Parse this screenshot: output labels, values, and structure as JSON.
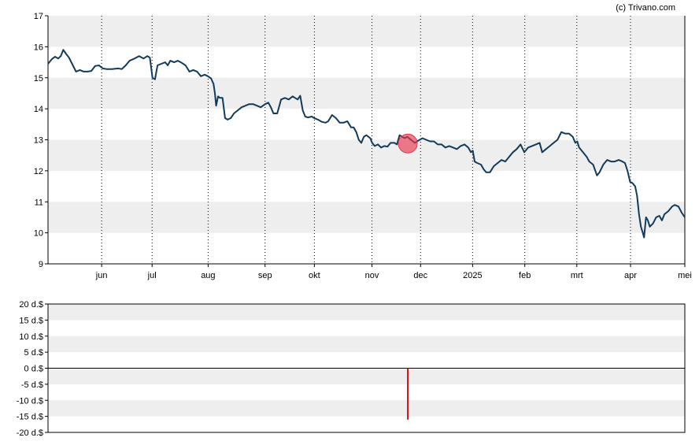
{
  "credit": "(c) Trivano.com",
  "chart_data": [
    {
      "type": "line",
      "panel": "price",
      "ylim": [
        9,
        17
      ],
      "y_ticks": [
        "9",
        "10",
        "11",
        "12",
        "13",
        "14",
        "15",
        "16",
        "17"
      ],
      "y_tick_values": [
        9,
        10,
        11,
        12,
        13,
        14,
        15,
        16,
        17
      ],
      "x_ticks": [
        "jun",
        "jul",
        "aug",
        "sep",
        "okt",
        "nov",
        "dec",
        "2025",
        "feb",
        "mrt",
        "apr",
        "mei"
      ],
      "x_tick_positions": [
        0.0842,
        0.1634,
        0.2514,
        0.3408,
        0.4183,
        0.5087,
        0.585,
        0.6667,
        0.7487,
        0.8304,
        0.9147,
        1.0
      ],
      "grid": "vertical dotted lines at month ticks, alternating horizontal bands",
      "series": [
        {
          "color": "#123b5b",
          "points": [
            [
              0.0,
              15.45
            ],
            [
              0.006,
              15.6
            ],
            [
              0.011,
              15.68
            ],
            [
              0.016,
              15.62
            ],
            [
              0.02,
              15.7
            ],
            [
              0.024,
              15.9
            ],
            [
              0.028,
              15.78
            ],
            [
              0.033,
              15.65
            ],
            [
              0.039,
              15.4
            ],
            [
              0.044,
              15.2
            ],
            [
              0.05,
              15.25
            ],
            [
              0.056,
              15.2
            ],
            [
              0.062,
              15.2
            ],
            [
              0.068,
              15.22
            ],
            [
              0.074,
              15.38
            ],
            [
              0.08,
              15.4
            ],
            [
              0.086,
              15.3
            ],
            [
              0.092,
              15.28
            ],
            [
              0.1,
              15.28
            ],
            [
              0.11,
              15.3
            ],
            [
              0.116,
              15.28
            ],
            [
              0.122,
              15.4
            ],
            [
              0.128,
              15.55
            ],
            [
              0.136,
              15.62
            ],
            [
              0.143,
              15.7
            ],
            [
              0.15,
              15.62
            ],
            [
              0.156,
              15.7
            ],
            [
              0.16,
              15.65
            ],
            [
              0.164,
              15.0
            ],
            [
              0.168,
              14.95
            ],
            [
              0.172,
              15.4
            ],
            [
              0.178,
              15.45
            ],
            [
              0.184,
              15.5
            ],
            [
              0.188,
              15.4
            ],
            [
              0.192,
              15.55
            ],
            [
              0.198,
              15.5
            ],
            [
              0.204,
              15.55
            ],
            [
              0.21,
              15.48
            ],
            [
              0.216,
              15.4
            ],
            [
              0.222,
              15.2
            ],
            [
              0.228,
              15.25
            ],
            [
              0.234,
              15.2
            ],
            [
              0.24,
              15.05
            ],
            [
              0.246,
              15.1
            ],
            [
              0.251,
              15.05
            ],
            [
              0.256,
              14.98
            ],
            [
              0.26,
              14.8
            ],
            [
              0.262,
              14.5
            ],
            [
              0.264,
              14.1
            ],
            [
              0.267,
              14.4
            ],
            [
              0.27,
              14.35
            ],
            [
              0.274,
              14.35
            ],
            [
              0.278,
              13.7
            ],
            [
              0.282,
              13.65
            ],
            [
              0.287,
              13.7
            ],
            [
              0.292,
              13.85
            ],
            [
              0.298,
              13.95
            ],
            [
              0.304,
              14.05
            ],
            [
              0.31,
              14.1
            ],
            [
              0.316,
              14.15
            ],
            [
              0.322,
              14.15
            ],
            [
              0.328,
              14.1
            ],
            [
              0.334,
              14.05
            ],
            [
              0.341,
              14.15
            ],
            [
              0.346,
              14.2
            ],
            [
              0.35,
              14.05
            ],
            [
              0.354,
              13.85
            ],
            [
              0.36,
              13.85
            ],
            [
              0.366,
              14.3
            ],
            [
              0.372,
              14.35
            ],
            [
              0.378,
              14.3
            ],
            [
              0.384,
              14.4
            ],
            [
              0.388,
              14.35
            ],
            [
              0.392,
              14.3
            ],
            [
              0.396,
              14.42
            ],
            [
              0.4,
              13.95
            ],
            [
              0.404,
              13.75
            ],
            [
              0.408,
              13.72
            ],
            [
              0.414,
              13.75
            ],
            [
              0.418,
              13.7
            ],
            [
              0.424,
              13.65
            ],
            [
              0.43,
              13.58
            ],
            [
              0.436,
              13.55
            ],
            [
              0.44,
              13.6
            ],
            [
              0.446,
              13.8
            ],
            [
              0.452,
              13.7
            ],
            [
              0.458,
              13.55
            ],
            [
              0.464,
              13.55
            ],
            [
              0.47,
              13.6
            ],
            [
              0.476,
              13.4
            ],
            [
              0.48,
              13.4
            ],
            [
              0.484,
              13.25
            ],
            [
              0.488,
              13.0
            ],
            [
              0.492,
              12.9
            ],
            [
              0.496,
              13.1
            ],
            [
              0.5,
              13.15
            ],
            [
              0.506,
              13.05
            ],
            [
              0.509,
              12.9
            ],
            [
              0.513,
              12.8
            ],
            [
              0.518,
              12.85
            ],
            [
              0.523,
              12.75
            ],
            [
              0.528,
              12.8
            ],
            [
              0.533,
              12.78
            ],
            [
              0.538,
              12.9
            ],
            [
              0.544,
              12.9
            ],
            [
              0.548,
              12.85
            ],
            [
              0.552,
              13.15
            ],
            [
              0.556,
              13.1
            ],
            [
              0.56,
              13.05
            ],
            [
              0.564,
              13.1
            ],
            [
              0.57,
              13.0
            ],
            [
              0.576,
              12.9
            ],
            [
              0.582,
              12.98
            ],
            [
              0.588,
              13.05
            ],
            [
              0.594,
              13.0
            ],
            [
              0.6,
              12.95
            ],
            [
              0.606,
              12.95
            ],
            [
              0.612,
              12.85
            ],
            [
              0.618,
              12.85
            ],
            [
              0.624,
              12.75
            ],
            [
              0.63,
              12.8
            ],
            [
              0.636,
              12.75
            ],
            [
              0.642,
              12.7
            ],
            [
              0.648,
              12.8
            ],
            [
              0.654,
              12.85
            ],
            [
              0.66,
              12.75
            ],
            [
              0.664,
              12.6
            ],
            [
              0.667,
              12.65
            ],
            [
              0.67,
              12.3
            ],
            [
              0.674,
              12.25
            ],
            [
              0.68,
              12.2
            ],
            [
              0.684,
              12.05
            ],
            [
              0.688,
              11.95
            ],
            [
              0.694,
              11.95
            ],
            [
              0.7,
              12.15
            ],
            [
              0.706,
              12.25
            ],
            [
              0.712,
              12.35
            ],
            [
              0.718,
              12.3
            ],
            [
              0.724,
              12.45
            ],
            [
              0.73,
              12.6
            ],
            [
              0.736,
              12.7
            ],
            [
              0.742,
              12.85
            ],
            [
              0.748,
              12.6
            ],
            [
              0.754,
              12.75
            ],
            [
              0.76,
              12.8
            ],
            [
              0.766,
              12.85
            ],
            [
              0.772,
              12.9
            ],
            [
              0.776,
              12.6
            ],
            [
              0.782,
              12.7
            ],
            [
              0.788,
              12.8
            ],
            [
              0.794,
              12.9
            ],
            [
              0.8,
              13.0
            ],
            [
              0.806,
              13.25
            ],
            [
              0.812,
              13.2
            ],
            [
              0.818,
              13.2
            ],
            [
              0.824,
              13.1
            ],
            [
              0.828,
              12.9
            ],
            [
              0.831,
              12.95
            ],
            [
              0.834,
              12.75
            ],
            [
              0.84,
              12.6
            ],
            [
              0.846,
              12.45
            ],
            [
              0.85,
              12.3
            ],
            [
              0.856,
              12.2
            ],
            [
              0.862,
              11.85
            ],
            [
              0.866,
              11.95
            ],
            [
              0.872,
              12.2
            ],
            [
              0.878,
              12.35
            ],
            [
              0.884,
              12.3
            ],
            [
              0.89,
              12.3
            ],
            [
              0.896,
              12.35
            ],
            [
              0.902,
              12.3
            ],
            [
              0.906,
              12.25
            ],
            [
              0.91,
              12.0
            ],
            [
              0.914,
              11.65
            ],
            [
              0.918,
              11.6
            ],
            [
              0.922,
              11.5
            ],
            [
              0.925,
              11.2
            ],
            [
              0.928,
              10.6
            ],
            [
              0.931,
              10.2
            ],
            [
              0.934,
              10.0
            ],
            [
              0.936,
              9.85
            ],
            [
              0.939,
              10.5
            ],
            [
              0.942,
              10.4
            ],
            [
              0.945,
              10.2
            ],
            [
              0.95,
              10.3
            ],
            [
              0.955,
              10.5
            ],
            [
              0.96,
              10.55
            ],
            [
              0.964,
              10.4
            ],
            [
              0.968,
              10.6
            ],
            [
              0.974,
              10.7
            ],
            [
              0.98,
              10.85
            ],
            [
              0.984,
              10.9
            ],
            [
              0.99,
              10.85
            ],
            [
              0.995,
              10.65
            ],
            [
              1.0,
              10.5
            ]
          ]
        }
      ],
      "marker": {
        "x": 0.565,
        "y": 12.88,
        "color": "#e8374f"
      }
    },
    {
      "type": "bar",
      "panel": "dividend",
      "ylim": [
        -20,
        20
      ],
      "y_ticks": [
        "20 d.$",
        "15 d.$",
        "10 d.$",
        "5 d.$",
        "0 d.$",
        "-5 d.$",
        "-10 d.$",
        "-15 d.$",
        "-20 d.$"
      ],
      "y_tick_values": [
        20,
        15,
        10,
        5,
        0,
        -5,
        -10,
        -15,
        -20
      ],
      "grid": "alternating horizontal bands",
      "bars": [
        {
          "x": 0.565,
          "value": -16.0,
          "color": "#cc1111"
        }
      ]
    }
  ]
}
